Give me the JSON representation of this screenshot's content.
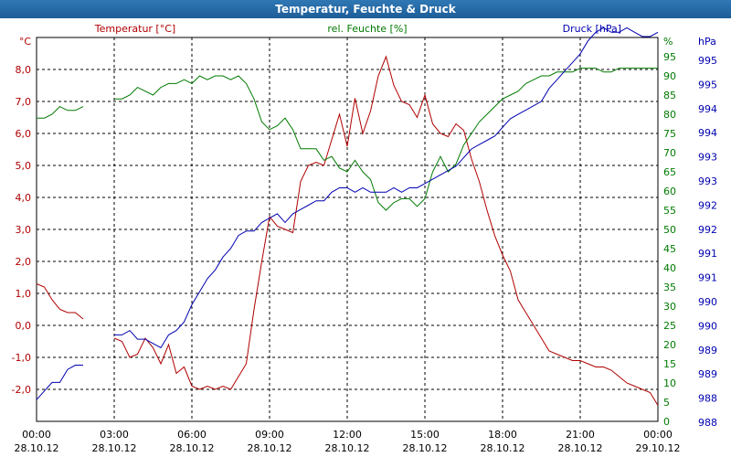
{
  "window": {
    "title": "Temperatur, Feuchte & Druck"
  },
  "chart_data": {
    "type": "line",
    "title": "Temperatur, Feuchte & Druck",
    "colors": {
      "temp": "#b00000",
      "hum": "#007a00",
      "press": "#0000b0",
      "grid": "#000000"
    },
    "axes": {
      "temp": {
        "unit": "°C",
        "label": "Temperatur [°C]",
        "range": [
          -3,
          9
        ],
        "ticks": [
          "8,0",
          "7,0",
          "6,0",
          "5,0",
          "4,0",
          "3,0",
          "2,0",
          "1,0",
          "0,0",
          "-1,0",
          "-2,0"
        ],
        "tick_values": [
          8,
          7,
          6,
          5,
          4,
          3,
          2,
          1,
          0,
          -1,
          -2
        ]
      },
      "hum": {
        "unit": "%",
        "label": "rel. Feuchte [%]",
        "range": [
          0,
          100
        ],
        "ticks": [
          "95",
          "90",
          "85",
          "80",
          "75",
          "70",
          "65",
          "60",
          "55",
          "50",
          "45",
          "40",
          "35",
          "30",
          "25",
          "20",
          "15",
          "10",
          "5",
          "0"
        ],
        "tick_values": [
          95,
          90,
          85,
          80,
          75,
          70,
          65,
          60,
          55,
          50,
          45,
          40,
          35,
          30,
          25,
          20,
          15,
          10,
          5,
          0
        ]
      },
      "press": {
        "unit": "hPa",
        "label": "Druck [hPa]",
        "ticks": [
          "995",
          "995",
          "994",
          "994",
          "993",
          "993",
          "992",
          "992",
          "991",
          "991",
          "990",
          "990",
          "989",
          "989",
          "988",
          "988"
        ]
      }
    },
    "x_ticks": [
      {
        "time": "00:00",
        "date": "28.10.12"
      },
      {
        "time": "03:00",
        "date": "28.10.12"
      },
      {
        "time": "06:00",
        "date": "28.10.12"
      },
      {
        "time": "09:00",
        "date": "28.10.12"
      },
      {
        "time": "12:00",
        "date": "28.10.12"
      },
      {
        "time": "15:00",
        "date": "28.10.12"
      },
      {
        "time": "18:00",
        "date": "28.10.12"
      },
      {
        "time": "21:00",
        "date": "28.10.12"
      },
      {
        "time": "00:00",
        "date": "29.10.12"
      }
    ],
    "x_range_hours": [
      0,
      24
    ],
    "series": [
      {
        "name": "Temperatur",
        "key": "temp",
        "segments": [
          [
            [
              0,
              1.3
            ],
            [
              0.3,
              1.2
            ],
            [
              0.6,
              0.8
            ],
            [
              0.9,
              0.5
            ],
            [
              1.2,
              0.4
            ],
            [
              1.5,
              0.4
            ],
            [
              1.8,
              0.2
            ]
          ],
          [
            [
              3.0,
              -0.4
            ],
            [
              3.3,
              -0.5
            ],
            [
              3.6,
              -1.0
            ],
            [
              3.9,
              -0.9
            ],
            [
              4.2,
              -0.4
            ],
            [
              4.5,
              -0.7
            ],
            [
              4.8,
              -1.2
            ],
            [
              5.1,
              -0.6
            ],
            [
              5.4,
              -1.5
            ],
            [
              5.7,
              -1.3
            ],
            [
              6.0,
              -1.9
            ],
            [
              6.3,
              -2.0
            ],
            [
              6.6,
              -1.9
            ],
            [
              6.9,
              -2.0
            ],
            [
              7.2,
              -1.9
            ],
            [
              7.5,
              -2.0
            ],
            [
              7.8,
              -1.6
            ],
            [
              8.1,
              -1.2
            ],
            [
              8.4,
              0.5
            ],
            [
              8.7,
              2.0
            ],
            [
              9.0,
              3.4
            ],
            [
              9.3,
              3.1
            ],
            [
              9.6,
              3.0
            ],
            [
              9.9,
              2.9
            ],
            [
              10.2,
              4.5
            ],
            [
              10.5,
              5.0
            ],
            [
              10.8,
              5.1
            ],
            [
              11.1,
              5.0
            ],
            [
              11.4,
              5.8
            ],
            [
              11.7,
              6.6
            ],
            [
              12.0,
              5.6
            ],
            [
              12.3,
              7.1
            ],
            [
              12.6,
              6.0
            ],
            [
              12.9,
              6.7
            ],
            [
              13.2,
              7.8
            ],
            [
              13.5,
              8.4
            ],
            [
              13.8,
              7.5
            ],
            [
              14.1,
              7.0
            ],
            [
              14.4,
              6.9
            ],
            [
              14.7,
              6.5
            ],
            [
              15.0,
              7.2
            ],
            [
              15.3,
              6.3
            ],
            [
              15.6,
              6.0
            ],
            [
              15.9,
              5.9
            ],
            [
              16.2,
              6.3
            ],
            [
              16.5,
              6.1
            ],
            [
              16.8,
              5.2
            ],
            [
              17.1,
              4.5
            ],
            [
              17.4,
              3.6
            ],
            [
              17.7,
              2.8
            ],
            [
              18.0,
              2.2
            ],
            [
              18.3,
              1.7
            ],
            [
              18.6,
              0.8
            ],
            [
              18.9,
              0.4
            ],
            [
              19.2,
              0.0
            ],
            [
              19.5,
              -0.4
            ],
            [
              19.8,
              -0.8
            ],
            [
              20.1,
              -0.9
            ],
            [
              20.4,
              -1.0
            ],
            [
              20.7,
              -1.1
            ],
            [
              21.0,
              -1.1
            ],
            [
              21.3,
              -1.2
            ],
            [
              21.6,
              -1.3
            ],
            [
              21.9,
              -1.3
            ],
            [
              22.2,
              -1.4
            ],
            [
              22.5,
              -1.6
            ],
            [
              22.8,
              -1.8
            ],
            [
              23.1,
              -1.9
            ],
            [
              23.4,
              -2.0
            ],
            [
              23.7,
              -2.1
            ],
            [
              24.0,
              -2.5
            ]
          ]
        ]
      },
      {
        "name": "rel. Feuchte",
        "key": "hum",
        "segments": [
          [
            [
              0,
              79
            ],
            [
              0.3,
              79
            ],
            [
              0.6,
              80
            ],
            [
              0.9,
              82
            ],
            [
              1.2,
              81
            ],
            [
              1.5,
              81
            ],
            [
              1.8,
              82
            ]
          ],
          [
            [
              3.0,
              84
            ],
            [
              3.3,
              84
            ],
            [
              3.6,
              85
            ],
            [
              3.9,
              87
            ],
            [
              4.2,
              86
            ],
            [
              4.5,
              85
            ],
            [
              4.8,
              87
            ],
            [
              5.1,
              88
            ],
            [
              5.4,
              88
            ],
            [
              5.7,
              89
            ],
            [
              6.0,
              88
            ],
            [
              6.3,
              90
            ],
            [
              6.6,
              89
            ],
            [
              6.9,
              90
            ],
            [
              7.2,
              90
            ],
            [
              7.5,
              89
            ],
            [
              7.8,
              90
            ],
            [
              8.1,
              88
            ],
            [
              8.4,
              84
            ],
            [
              8.7,
              78
            ],
            [
              9.0,
              76
            ],
            [
              9.3,
              77
            ],
            [
              9.6,
              79
            ],
            [
              9.9,
              76
            ],
            [
              10.2,
              71
            ],
            [
              10.5,
              71
            ],
            [
              10.8,
              71
            ],
            [
              11.1,
              68
            ],
            [
              11.4,
              69
            ],
            [
              11.7,
              66
            ],
            [
              12.0,
              65
            ],
            [
              12.3,
              68
            ],
            [
              12.6,
              65
            ],
            [
              12.9,
              63
            ],
            [
              13.2,
              57
            ],
            [
              13.5,
              55
            ],
            [
              13.8,
              57
            ],
            [
              14.1,
              58
            ],
            [
              14.4,
              58
            ],
            [
              14.7,
              56
            ],
            [
              15.0,
              58
            ],
            [
              15.3,
              65
            ],
            [
              15.6,
              69
            ],
            [
              15.9,
              65
            ],
            [
              16.2,
              67
            ],
            [
              16.5,
              72
            ],
            [
              16.8,
              75
            ],
            [
              17.1,
              78
            ],
            [
              17.4,
              80
            ],
            [
              17.7,
              82
            ],
            [
              18.0,
              84
            ],
            [
              18.3,
              85
            ],
            [
              18.6,
              86
            ],
            [
              18.9,
              88
            ],
            [
              19.2,
              89
            ],
            [
              19.5,
              90
            ],
            [
              19.8,
              90
            ],
            [
              20.1,
              91
            ],
            [
              20.4,
              91
            ],
            [
              20.7,
              91
            ],
            [
              21.0,
              92
            ],
            [
              21.3,
              92
            ],
            [
              21.6,
              92
            ],
            [
              21.9,
              91
            ],
            [
              22.2,
              91
            ],
            [
              22.5,
              92
            ],
            [
              22.8,
              92
            ],
            [
              23.1,
              92
            ],
            [
              23.4,
              92
            ],
            [
              23.7,
              92
            ],
            [
              24.0,
              92
            ]
          ]
        ]
      },
      {
        "name": "Druck",
        "key": "press",
        "segments": [
          [
            [
              0,
              988.0
            ],
            [
              0.3,
              988.2
            ],
            [
              0.6,
              988.4
            ],
            [
              0.9,
              988.4
            ],
            [
              1.2,
              988.7
            ],
            [
              1.5,
              988.8
            ],
            [
              1.8,
              988.8
            ]
          ],
          [
            [
              3.0,
              989.5
            ],
            [
              3.3,
              989.5
            ],
            [
              3.6,
              989.6
            ],
            [
              3.9,
              989.4
            ],
            [
              4.2,
              989.4
            ],
            [
              4.5,
              989.3
            ],
            [
              4.8,
              989.2
            ],
            [
              5.1,
              989.5
            ],
            [
              5.4,
              989.6
            ],
            [
              5.7,
              989.8
            ],
            [
              6.0,
              990.2
            ],
            [
              6.3,
              990.5
            ],
            [
              6.6,
              990.8
            ],
            [
              6.9,
              991.0
            ],
            [
              7.2,
              991.3
            ],
            [
              7.5,
              991.5
            ],
            [
              7.8,
              991.8
            ],
            [
              8.1,
              991.9
            ],
            [
              8.4,
              991.9
            ],
            [
              8.7,
              992.1
            ],
            [
              9.0,
              992.2
            ],
            [
              9.3,
              992.3
            ],
            [
              9.6,
              992.1
            ],
            [
              9.9,
              992.3
            ],
            [
              10.2,
              992.4
            ],
            [
              10.5,
              992.5
            ],
            [
              10.8,
              992.6
            ],
            [
              11.1,
              992.6
            ],
            [
              11.4,
              992.8
            ],
            [
              11.7,
              992.9
            ],
            [
              12.0,
              992.9
            ],
            [
              12.3,
              992.8
            ],
            [
              12.6,
              992.9
            ],
            [
              12.9,
              992.8
            ],
            [
              13.2,
              992.8
            ],
            [
              13.5,
              992.8
            ],
            [
              13.8,
              992.9
            ],
            [
              14.1,
              992.8
            ],
            [
              14.4,
              992.9
            ],
            [
              14.7,
              992.9
            ],
            [
              15.0,
              993.0
            ],
            [
              15.3,
              993.1
            ],
            [
              15.6,
              993.2
            ],
            [
              15.9,
              993.3
            ],
            [
              16.2,
              993.4
            ],
            [
              16.5,
              993.6
            ],
            [
              16.8,
              993.8
            ],
            [
              17.1,
              993.9
            ],
            [
              17.4,
              994.0
            ],
            [
              17.7,
              994.1
            ],
            [
              18.0,
              994.3
            ],
            [
              18.3,
              994.5
            ],
            [
              18.6,
              994.6
            ],
            [
              18.9,
              994.7
            ],
            [
              19.2,
              994.8
            ],
            [
              19.5,
              994.9
            ],
            [
              19.8,
              995.2
            ],
            [
              20.1,
              995.4
            ],
            [
              20.4,
              995.6
            ],
            [
              20.7,
              995.8
            ],
            [
              21.0,
              996.0
            ],
            [
              21.3,
              996.3
            ],
            [
              21.6,
              996.5
            ],
            [
              21.9,
              996.6
            ],
            [
              22.2,
              996.5
            ],
            [
              22.5,
              996.5
            ],
            [
              22.8,
              996.6
            ],
            [
              23.1,
              996.5
            ],
            [
              23.4,
              996.4
            ],
            [
              23.7,
              996.4
            ],
            [
              24.0,
              996.5
            ]
          ]
        ]
      }
    ]
  }
}
